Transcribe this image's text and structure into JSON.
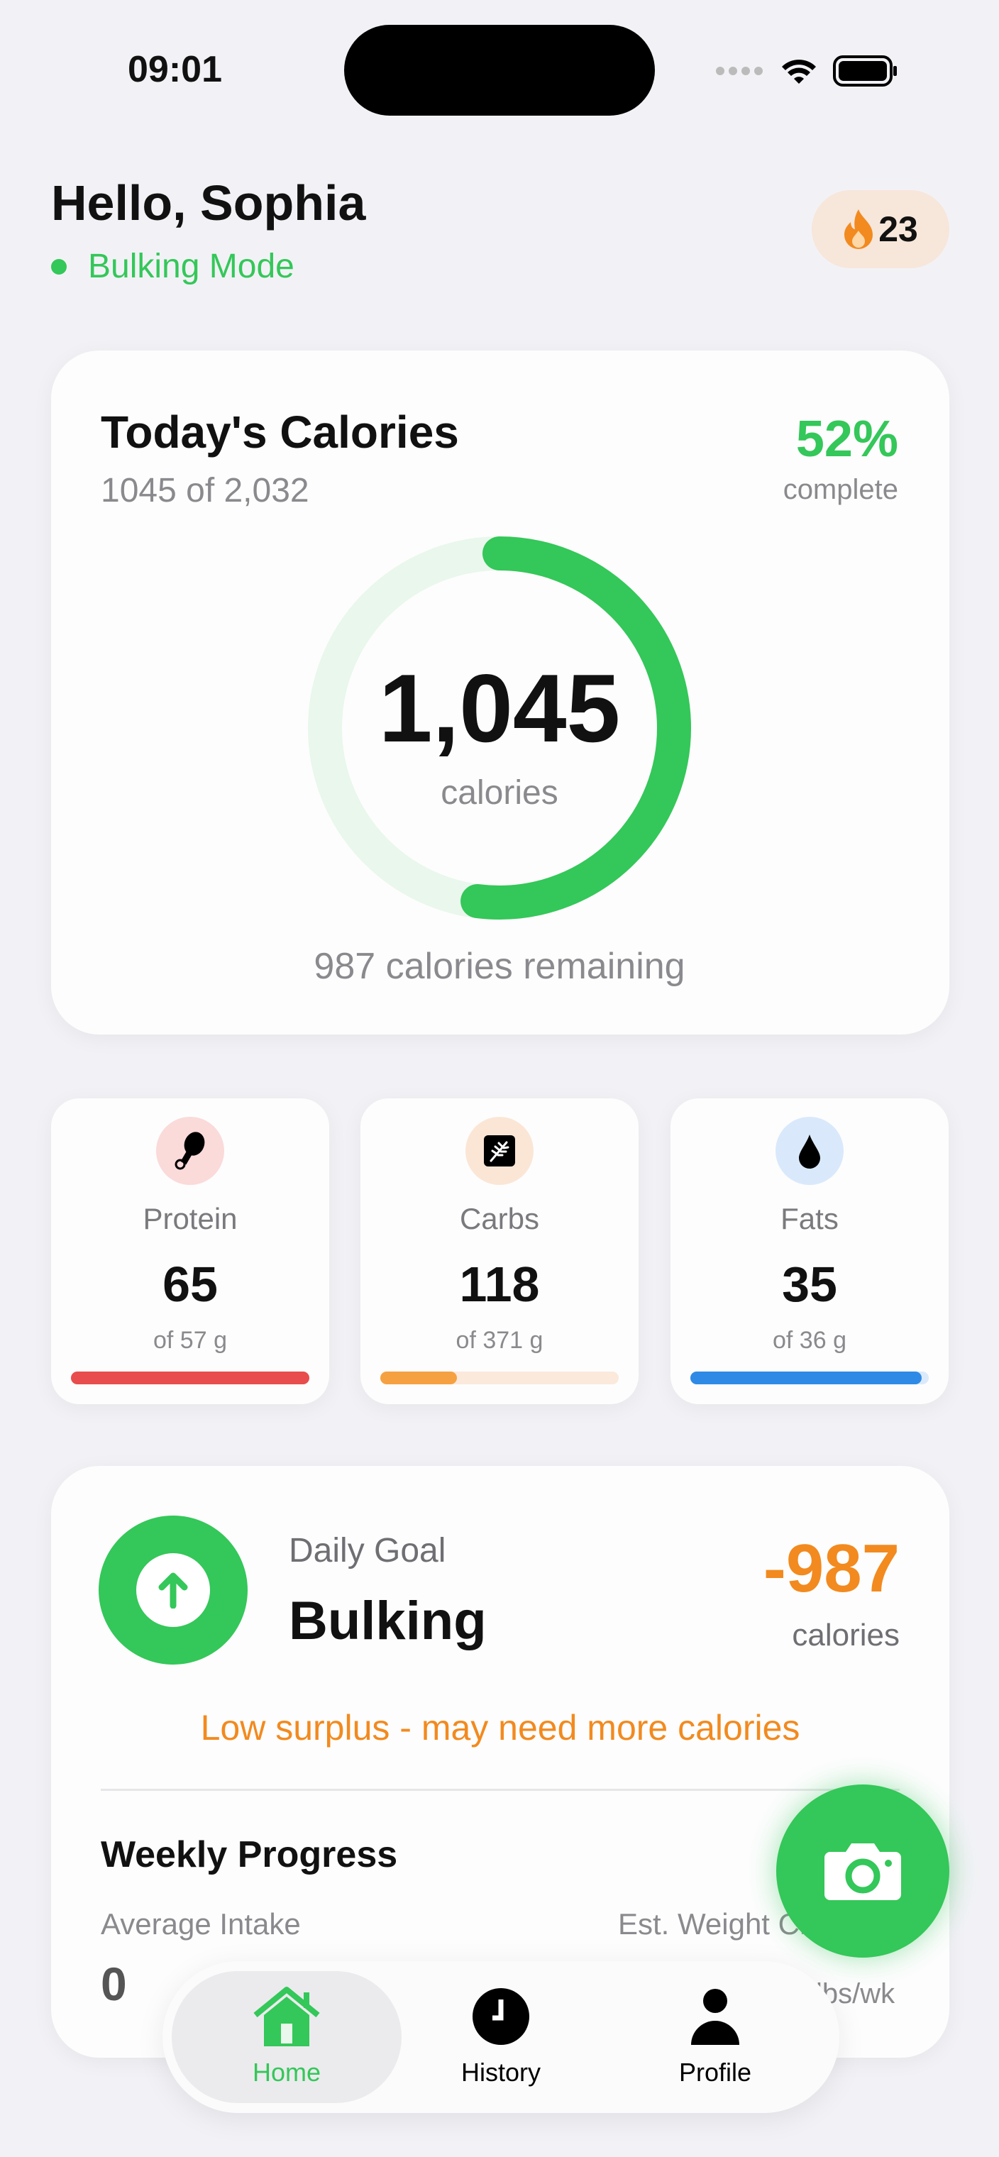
{
  "status_bar": {
    "time": "09:01"
  },
  "header": {
    "greeting": "Hello, Sophia",
    "mode": "Bulking Mode",
    "streak": "23",
    "streak_icon": "flame-icon"
  },
  "calories": {
    "title": "Today's Calories",
    "subtitle": "1045 of 2,032",
    "percent": "52%",
    "percent_label": "complete",
    "value": "1,045",
    "unit": "calories",
    "remaining": "987 calories remaining",
    "progress": 0.52
  },
  "macros": [
    {
      "label": "Protein",
      "value": "65",
      "goal": "of 57 g",
      "progress": 1.0,
      "color": "#e84c4c",
      "track": "#fbe3e3",
      "icon_bg": "#fbdada",
      "icon": "drumstick-icon"
    },
    {
      "label": "Carbs",
      "value": "118",
      "goal": "of 371 g",
      "progress": 0.32,
      "color": "#f5a142",
      "track": "#fbe9db",
      "icon_bg": "#fbe6d6",
      "icon": "wheat-icon"
    },
    {
      "label": "Fats",
      "value": "35",
      "goal": "of 36 g",
      "progress": 0.97,
      "color": "#2f8ae6",
      "track": "#dbeafb",
      "icon_bg": "#d9e9fb",
      "icon": "droplet-icon"
    }
  ],
  "goal": {
    "label": "Daily Goal",
    "name": "Bulking",
    "delta": "-987",
    "delta_unit": "calories",
    "warning": "Low surplus - may need more calories",
    "accent": "#f28a1f"
  },
  "weekly": {
    "title": "Weekly Progress",
    "avg_label": "Average Intake",
    "avg_value": "0",
    "weight_label": "Est. Weight Change",
    "weight_unit": "lbs/wk"
  },
  "nav": {
    "items": [
      {
        "label": "Home",
        "active": true
      },
      {
        "label": "History"
      },
      {
        "label": "Profile"
      }
    ]
  },
  "colors": {
    "brand": "#34c759",
    "background": "#f2f2f6"
  }
}
